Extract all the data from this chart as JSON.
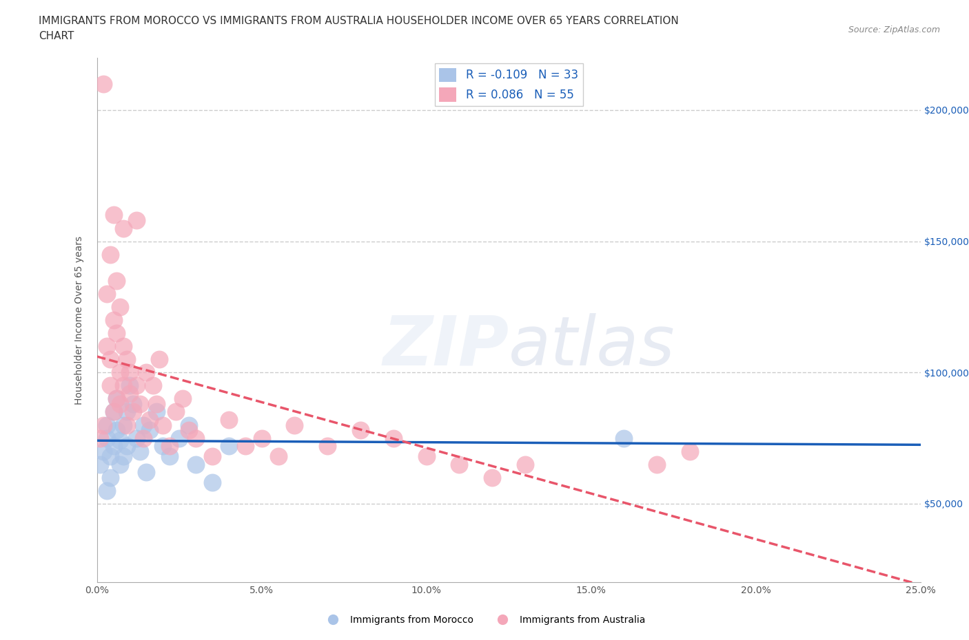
{
  "title_line1": "IMMIGRANTS FROM MOROCCO VS IMMIGRANTS FROM AUSTRALIA HOUSEHOLDER INCOME OVER 65 YEARS CORRELATION",
  "title_line2": "CHART",
  "source_text": "Source: ZipAtlas.com",
  "ylabel": "Householder Income Over 65 years",
  "xlabel_ticks": [
    "0.0%",
    "5.0%",
    "10.0%",
    "15.0%",
    "20.0%",
    "25.0%"
  ],
  "xlabel_tick_vals": [
    0.0,
    0.05,
    0.1,
    0.15,
    0.2,
    0.25
  ],
  "ytick_labels": [
    "$50,000",
    "$100,000",
    "$150,000",
    "$200,000"
  ],
  "ytick_vals": [
    50000,
    100000,
    150000,
    200000
  ],
  "xlim": [
    0.0,
    0.25
  ],
  "ylim": [
    20000,
    220000
  ],
  "morocco_R": -0.109,
  "morocco_N": 33,
  "australia_R": 0.086,
  "australia_N": 55,
  "morocco_color": "#aac4e8",
  "australia_color": "#f4a7b9",
  "morocco_line_color": "#1a5eb8",
  "australia_line_color": "#e8556a",
  "watermark": "ZIPatlas",
  "legend_label_morocco": "Immigrants from Morocco",
  "legend_label_australia": "Immigrants from Australia",
  "morocco_x": [
    0.001,
    0.002,
    0.003,
    0.003,
    0.004,
    0.004,
    0.005,
    0.005,
    0.006,
    0.006,
    0.007,
    0.007,
    0.008,
    0.008,
    0.009,
    0.009,
    0.01,
    0.011,
    0.012,
    0.013,
    0.014,
    0.015,
    0.016,
    0.018,
    0.02,
    0.022,
    0.025,
    0.028,
    0.03,
    0.035,
    0.04,
    0.16,
    0.003
  ],
  "morocco_y": [
    65000,
    70000,
    75000,
    80000,
    60000,
    68000,
    72000,
    85000,
    90000,
    78000,
    65000,
    74000,
    68000,
    80000,
    85000,
    72000,
    95000,
    88000,
    75000,
    70000,
    80000,
    62000,
    78000,
    85000,
    72000,
    68000,
    75000,
    80000,
    65000,
    58000,
    72000,
    75000,
    55000
  ],
  "australia_x": [
    0.001,
    0.002,
    0.003,
    0.004,
    0.004,
    0.005,
    0.005,
    0.006,
    0.006,
    0.007,
    0.007,
    0.008,
    0.008,
    0.009,
    0.009,
    0.01,
    0.01,
    0.011,
    0.012,
    0.013,
    0.014,
    0.015,
    0.016,
    0.017,
    0.018,
    0.019,
    0.02,
    0.022,
    0.024,
    0.026,
    0.028,
    0.03,
    0.035,
    0.04,
    0.045,
    0.05,
    0.055,
    0.06,
    0.07,
    0.08,
    0.09,
    0.1,
    0.11,
    0.12,
    0.13,
    0.003,
    0.004,
    0.005,
    0.006,
    0.007,
    0.008,
    0.17,
    0.18,
    0.002,
    0.012
  ],
  "australia_y": [
    75000,
    80000,
    110000,
    95000,
    105000,
    85000,
    120000,
    115000,
    90000,
    100000,
    88000,
    95000,
    110000,
    80000,
    105000,
    92000,
    100000,
    85000,
    95000,
    88000,
    75000,
    100000,
    82000,
    95000,
    88000,
    105000,
    80000,
    72000,
    85000,
    90000,
    78000,
    75000,
    68000,
    82000,
    72000,
    75000,
    68000,
    80000,
    72000,
    78000,
    75000,
    68000,
    65000,
    60000,
    65000,
    130000,
    145000,
    160000,
    135000,
    125000,
    155000,
    65000,
    70000,
    210000,
    158000
  ]
}
